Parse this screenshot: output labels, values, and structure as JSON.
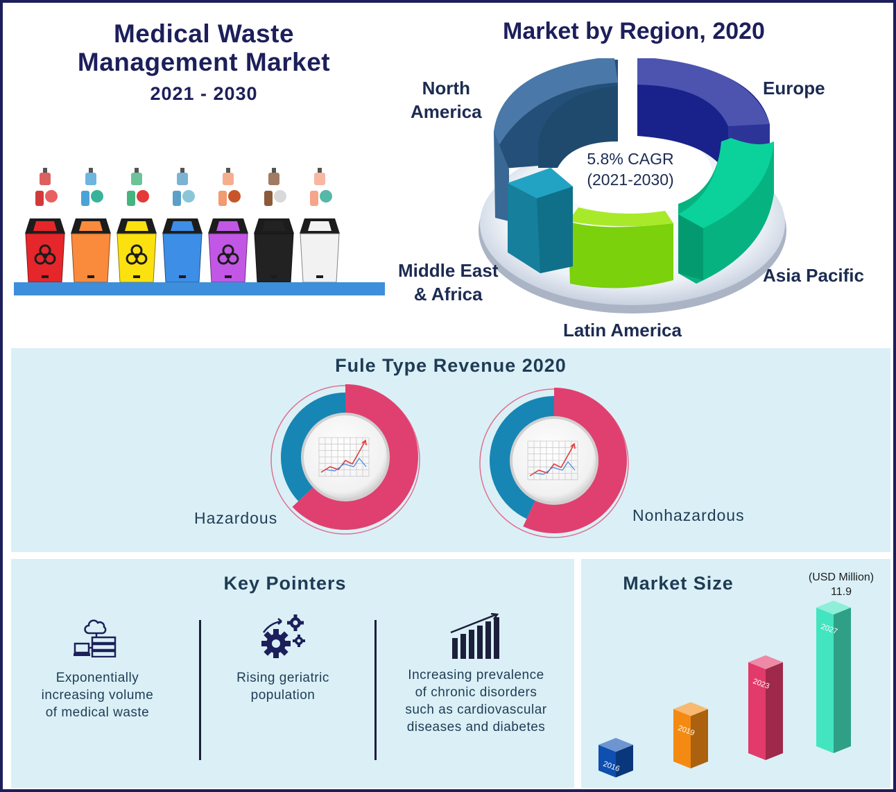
{
  "header": {
    "title_line1": "Medical Waste",
    "title_line2": "Management Market",
    "years": "2021 - 2030"
  },
  "colors": {
    "navy": "#1c1f5a",
    "panel_bg": "#daf0f6",
    "shelf": "#3d8edb",
    "donut_pink": "#e0406f",
    "donut_blue": "#1786b4"
  },
  "bins": [
    {
      "color": "#e5262a",
      "symbol": "biohazard",
      "icons": "lungs-blood-icon"
    },
    {
      "color": "#fa8a3c",
      "symbol": "",
      "icons": "sanitizer-gloves-icon"
    },
    {
      "color": "#fbe10f",
      "symbol": "biohazard",
      "icons": "apron-syringe-icon"
    },
    {
      "color": "#3d8ee6",
      "symbol": "",
      "icons": "pills-bottle-icon"
    },
    {
      "color": "#c257e5",
      "symbol": "biohazard",
      "icons": "bandage-jars-icon"
    },
    {
      "color": "#222222",
      "symbol": "",
      "icons": "cup-tissue-icon"
    },
    {
      "color": "#f2f2f2",
      "symbol": "",
      "icons": "dentures-icon"
    }
  ],
  "region_chart": {
    "title": "Market by Region, 2020",
    "center_line1": "5.8% CAGR",
    "center_line2": "(2021-2030)",
    "segments": [
      {
        "name": "North America",
        "line1": "North",
        "line2": "America",
        "color": "#4a78a8"
      },
      {
        "name": "Europe",
        "line1": "Europe",
        "line2": "",
        "color": "#2b3796"
      },
      {
        "name": "Asia Pacific",
        "line1": "Asia Pacific",
        "line2": "",
        "color": "#08b98a"
      },
      {
        "name": "Latin America",
        "line1": "Latin America",
        "line2": "",
        "color": "#7fd80c"
      },
      {
        "name": "Middle East & Africa",
        "line1": "Middle East",
        "line2": "& Africa",
        "color": "#1b8aa8"
      }
    ]
  },
  "revenue": {
    "title": "Fule Type Revenue 2020",
    "items": [
      {
        "label": "Hazardous",
        "pink_fraction": 0.63
      },
      {
        "label": "Nonhazardous",
        "pink_fraction": 0.57
      }
    ]
  },
  "key_pointers": {
    "title": "Key Pointers",
    "items": [
      {
        "icon": "cloud-server-icon",
        "lines": [
          "Exponentially",
          "increasing volume",
          "of medical waste"
        ]
      },
      {
        "icon": "gears-icon",
        "lines": [
          "Rising geriatric",
          "population"
        ]
      },
      {
        "icon": "bar-growth-icon",
        "lines": [
          "Increasing prevalence",
          "of chronic disorders",
          "such as cardiovascular",
          "diseases and diabetes"
        ]
      }
    ]
  },
  "market_size": {
    "title": "Market Size",
    "unit": "(USD Million)",
    "value_label": "11.9"
  },
  "chart_data": [
    {
      "type": "bar",
      "title": "Market Size",
      "ylabel": "(USD Million)",
      "categories": [
        "2016",
        "2019",
        "2023",
        "2027"
      ],
      "values": [
        2.2,
        4.5,
        7.8,
        11.9
      ],
      "colors": [
        "#0e4fb0",
        "#f48a12",
        "#e23a6a",
        "#43e5c0"
      ]
    },
    {
      "type": "pie",
      "title": "Market by Region, 2020",
      "categories": [
        "North America",
        "Europe",
        "Asia Pacific",
        "Latin America",
        "Middle East & Africa"
      ],
      "values": [
        26,
        22,
        21,
        17,
        14
      ]
    }
  ]
}
